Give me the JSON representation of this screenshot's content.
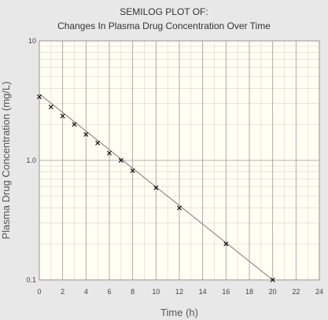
{
  "chart_data": {
    "type": "scatter",
    "title": "SEMILOG PLOT OF:",
    "subtitle": "Changes In Plasma Drug Concentration Over Time",
    "xlabel": "Time  (h)",
    "ylabel": "Plasma Drug Concentration  (mg/L)",
    "xlim": [
      0,
      24
    ],
    "ylim": [
      0.1,
      10
    ],
    "yscale": "log",
    "xticks": [
      "0",
      "2",
      "4",
      "6",
      "8",
      "10",
      "12",
      "14",
      "16",
      "18",
      "20",
      "22",
      "24"
    ],
    "yticks": [
      "0.1",
      "1.0",
      "10"
    ],
    "grid": true,
    "marker": "x",
    "series": [
      {
        "x": [
          0,
          1,
          2,
          3,
          4,
          5,
          6,
          7,
          8,
          10,
          12,
          16,
          20
        ],
        "y": [
          3.4,
          2.8,
          2.35,
          2.0,
          1.65,
          1.4,
          1.15,
          1.0,
          0.82,
          0.59,
          0.4,
          0.2,
          0.1
        ]
      }
    ],
    "trendline": {
      "x": [
        0,
        20
      ],
      "y": [
        3.6,
        0.1
      ]
    },
    "colors": {
      "background": "#e8e8e8",
      "plot_background": "#fffff4",
      "major_grid": "#999999",
      "minor_grid": "#d6d6cc",
      "line": "#777777",
      "marker": "#111111"
    }
  }
}
